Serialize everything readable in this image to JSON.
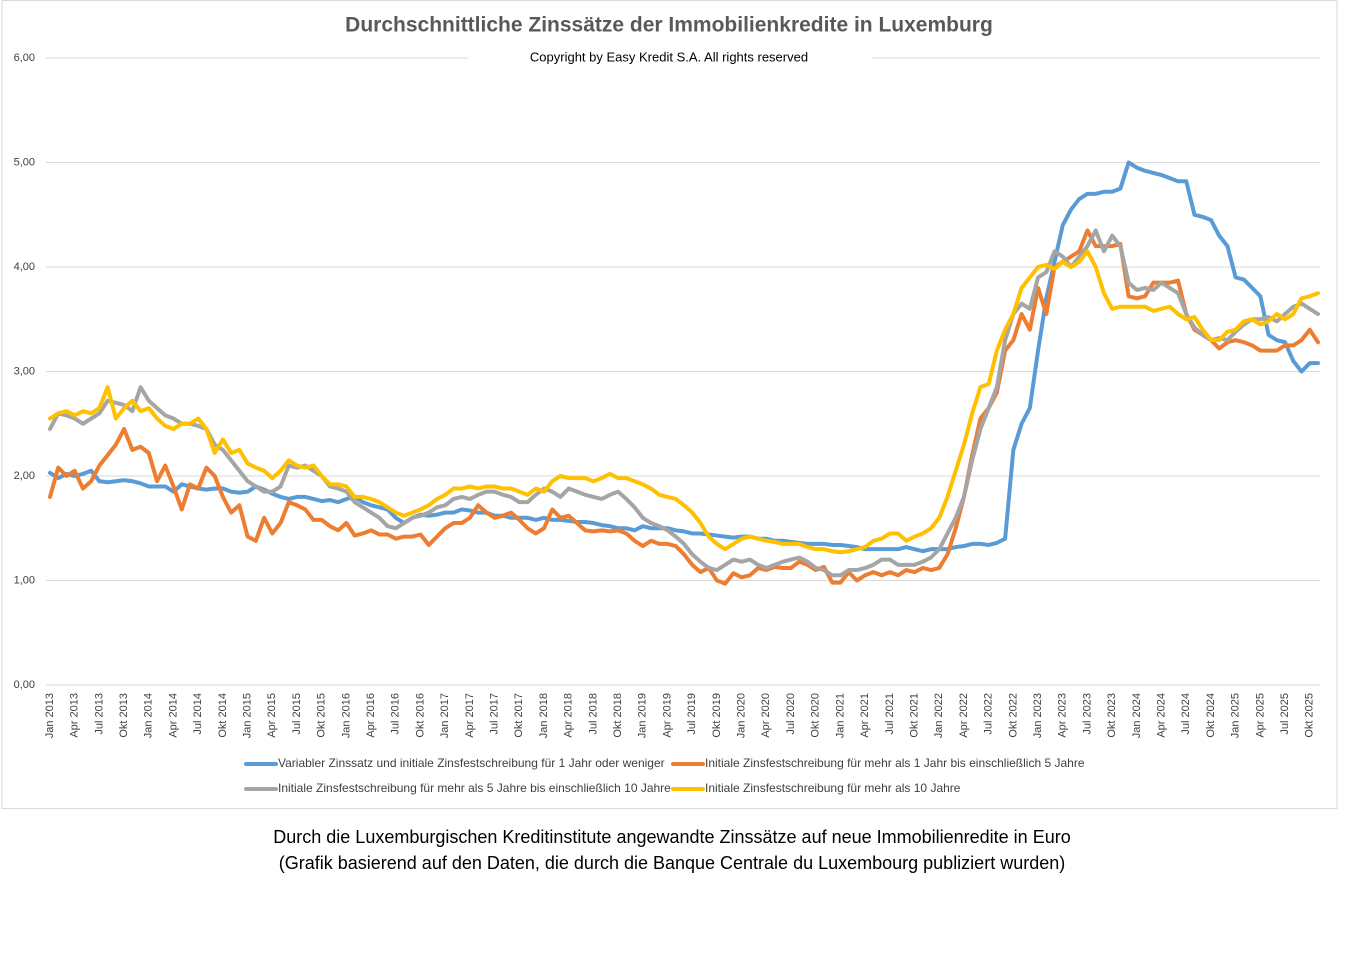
{
  "chart_data": {
    "type": "line",
    "title": "Durchschnittliche Zinssätze der Immobilienkredite in Luxemburg",
    "subtitle": "Copyright by Easy Kredit S.A. All rights reserved",
    "captions": [
      "Durch die Luxemburgischen Kreditinstitute angewandte Zinssätze auf neue Immobilienredite in Euro",
      "(Grafik basierend auf den Daten, die durch die Banque Centrale du Luxembourg publiziert wurden)"
    ],
    "ylim": [
      0,
      6
    ],
    "yticks": [
      {
        "value": 0,
        "label": "0,00"
      },
      {
        "value": 1,
        "label": "1,00"
      },
      {
        "value": 2,
        "label": "2,00"
      },
      {
        "value": 3,
        "label": "3,00"
      },
      {
        "value": 4,
        "label": "4,00"
      },
      {
        "value": 5,
        "label": "5,00"
      },
      {
        "value": 6,
        "label": "6,00"
      }
    ],
    "grid": true,
    "legend": "bottom",
    "categories": [
      "Jan 2013",
      null,
      null,
      "Apr 2013",
      null,
      null,
      "Jul 2013",
      null,
      null,
      "Okt 2013",
      null,
      null,
      "Jan 2014",
      null,
      null,
      "Apr 2014",
      null,
      null,
      "Jul 2014",
      null,
      null,
      "Okt 2014",
      null,
      null,
      "Jan 2015",
      null,
      null,
      "Apr 2015",
      null,
      null,
      "Jul 2015",
      null,
      null,
      "Okt 2015",
      null,
      null,
      "Jan 2016",
      null,
      null,
      "Apr 2016",
      null,
      null,
      "Jul 2016",
      null,
      null,
      "Okt 2016",
      null,
      null,
      "Jan 2017",
      null,
      null,
      "Apr 2017",
      null,
      null,
      "Jul 2017",
      null,
      null,
      "Okt 2017",
      null,
      null,
      "Jan 2018",
      null,
      null,
      "Apr 2018",
      null,
      null,
      "Jul 2018",
      null,
      null,
      "Okt 2018",
      null,
      null,
      "Jan 2019",
      null,
      null,
      "Apr 2019",
      null,
      null,
      "Jul 2019",
      null,
      null,
      "Okt 2019",
      null,
      null,
      "Jan 2020",
      null,
      null,
      "Apr 2020",
      null,
      null,
      "Jul 2020",
      null,
      null,
      "Okt 2020",
      null,
      null,
      "Jan 2021",
      null,
      null,
      "Apr 2021",
      null,
      null,
      "Jul 2021",
      null,
      null,
      "Okt 2021",
      null,
      null,
      "Jan 2022",
      null,
      null,
      "Apr 2022",
      null,
      null,
      "Jul 2022",
      null,
      null,
      "Okt 2022",
      null,
      null,
      "Jan 2023",
      null,
      null,
      "Apr 2023",
      null,
      null,
      "Jul 2023",
      null,
      null,
      "Okt 2023",
      null,
      null,
      "Jan 2024",
      null,
      null,
      "Apr 2024",
      null,
      null,
      "Jul 2024",
      null,
      null,
      "Okt 2024",
      null,
      null,
      "Jan 2025",
      null,
      null,
      "Apr 2025",
      null,
      null,
      "Jul 2025",
      null,
      null,
      "Okt 2025",
      null
    ],
    "series": [
      {
        "name": "Variabler Zinssatz und initiale Zinsfestschreibung für 1 Jahr oder weniger",
        "color": "#5b9bd5",
        "values": [
          2.03,
          1.98,
          2.02,
          2.0,
          2.02,
          2.05,
          1.95,
          1.94,
          1.95,
          1.96,
          1.95,
          1.93,
          1.9,
          1.9,
          1.9,
          1.85,
          1.92,
          1.9,
          1.88,
          1.87,
          1.88,
          1.88,
          1.85,
          1.84,
          1.85,
          1.9,
          1.87,
          1.83,
          1.8,
          1.78,
          1.8,
          1.8,
          1.78,
          1.76,
          1.77,
          1.75,
          1.78,
          1.8,
          1.75,
          1.72,
          1.7,
          1.68,
          1.6,
          1.55,
          1.6,
          1.63,
          1.62,
          1.63,
          1.65,
          1.65,
          1.68,
          1.67,
          1.65,
          1.65,
          1.62,
          1.62,
          1.6,
          1.6,
          1.6,
          1.58,
          1.6,
          1.58,
          1.58,
          1.57,
          1.56,
          1.56,
          1.55,
          1.53,
          1.52,
          1.5,
          1.5,
          1.48,
          1.52,
          1.5,
          1.5,
          1.5,
          1.48,
          1.47,
          1.45,
          1.45,
          1.44,
          1.43,
          1.42,
          1.41,
          1.42,
          1.42,
          1.4,
          1.4,
          1.38,
          1.38,
          1.37,
          1.36,
          1.35,
          1.35,
          1.35,
          1.34,
          1.34,
          1.33,
          1.32,
          1.3,
          1.3,
          1.3,
          1.3,
          1.3,
          1.32,
          1.3,
          1.28,
          1.3,
          1.3,
          1.3,
          1.32,
          1.33,
          1.35,
          1.35,
          1.34,
          1.36,
          1.4,
          2.25,
          2.5,
          2.65,
          3.2,
          3.7,
          4.05,
          4.4,
          4.55,
          4.65,
          4.7,
          4.7,
          4.72,
          4.72,
          4.75,
          5.0,
          4.95,
          4.92,
          4.9,
          4.88,
          4.85,
          4.82,
          4.82,
          4.5,
          4.48,
          4.45,
          4.3,
          4.2,
          3.9,
          3.88,
          3.8,
          3.72,
          3.35,
          3.3,
          3.28,
          3.1,
          3.0,
          3.08,
          3.08
        ]
      },
      {
        "name": "Initiale Zinsfestschreibung für mehr als 1 Jahr bis einschließlich 5 Jahre",
        "color": "#ed7d31",
        "values": [
          1.8,
          2.08,
          2.0,
          2.05,
          1.88,
          1.95,
          2.1,
          2.2,
          2.3,
          2.45,
          2.25,
          2.28,
          2.22,
          1.95,
          2.1,
          1.9,
          1.68,
          1.92,
          1.88,
          2.08,
          2.0,
          1.8,
          1.65,
          1.72,
          1.42,
          1.38,
          1.6,
          1.45,
          1.55,
          1.75,
          1.72,
          1.68,
          1.58,
          1.58,
          1.52,
          1.48,
          1.55,
          1.43,
          1.45,
          1.48,
          1.44,
          1.44,
          1.4,
          1.42,
          1.42,
          1.44,
          1.34,
          1.42,
          1.5,
          1.55,
          1.55,
          1.6,
          1.72,
          1.65,
          1.6,
          1.62,
          1.65,
          1.58,
          1.5,
          1.45,
          1.5,
          1.68,
          1.6,
          1.62,
          1.55,
          1.48,
          1.47,
          1.48,
          1.47,
          1.48,
          1.45,
          1.38,
          1.33,
          1.38,
          1.35,
          1.35,
          1.33,
          1.25,
          1.15,
          1.08,
          1.12,
          1.0,
          0.97,
          1.07,
          1.03,
          1.05,
          1.12,
          1.1,
          1.13,
          1.12,
          1.12,
          1.18,
          1.15,
          1.1,
          1.13,
          0.98,
          0.98,
          1.08,
          1.0,
          1.05,
          1.08,
          1.05,
          1.08,
          1.05,
          1.1,
          1.08,
          1.12,
          1.1,
          1.12,
          1.25,
          1.5,
          1.8,
          2.2,
          2.55,
          2.65,
          2.8,
          3.2,
          3.3,
          3.55,
          3.4,
          3.8,
          3.55,
          4.0,
          4.05,
          4.1,
          4.15,
          4.35,
          4.2,
          4.2,
          4.2,
          4.22,
          3.72,
          3.7,
          3.72,
          3.85,
          3.85,
          3.85,
          3.87,
          3.55,
          3.4,
          3.35,
          3.3,
          3.22,
          3.28,
          3.3,
          3.28,
          3.25,
          3.2,
          3.2,
          3.2,
          3.25,
          3.25,
          3.3,
          3.4,
          3.28
        ]
      },
      {
        "name": "Initiale Zinsfestschreibung für mehr als 5 Jahre bis einschließlich 10 Jahre",
        "color": "#a5a5a5",
        "values": [
          2.45,
          2.6,
          2.58,
          2.55,
          2.5,
          2.55,
          2.6,
          2.72,
          2.7,
          2.68,
          2.62,
          2.85,
          2.72,
          2.65,
          2.58,
          2.55,
          2.5,
          2.5,
          2.48,
          2.45,
          2.3,
          2.25,
          2.15,
          2.05,
          1.95,
          1.9,
          1.85,
          1.85,
          1.9,
          2.1,
          2.08,
          2.1,
          2.05,
          2.0,
          1.9,
          1.88,
          1.85,
          1.75,
          1.7,
          1.65,
          1.6,
          1.52,
          1.5,
          1.55,
          1.6,
          1.62,
          1.65,
          1.7,
          1.72,
          1.78,
          1.8,
          1.78,
          1.82,
          1.85,
          1.85,
          1.82,
          1.8,
          1.75,
          1.75,
          1.82,
          1.88,
          1.85,
          1.8,
          1.88,
          1.85,
          1.82,
          1.8,
          1.78,
          1.82,
          1.85,
          1.78,
          1.7,
          1.6,
          1.55,
          1.52,
          1.48,
          1.42,
          1.35,
          1.25,
          1.18,
          1.12,
          1.1,
          1.15,
          1.2,
          1.18,
          1.2,
          1.15,
          1.12,
          1.15,
          1.18,
          1.2,
          1.22,
          1.18,
          1.12,
          1.1,
          1.05,
          1.05,
          1.1,
          1.1,
          1.12,
          1.15,
          1.2,
          1.2,
          1.15,
          1.15,
          1.15,
          1.18,
          1.22,
          1.3,
          1.45,
          1.6,
          1.8,
          2.15,
          2.45,
          2.65,
          2.85,
          3.3,
          3.55,
          3.65,
          3.6,
          3.9,
          3.95,
          4.15,
          4.1,
          4.0,
          4.1,
          4.2,
          4.35,
          4.15,
          4.3,
          4.2,
          3.85,
          3.78,
          3.8,
          3.78,
          3.85,
          3.8,
          3.75,
          3.55,
          3.42,
          3.35,
          3.3,
          3.32,
          3.3,
          3.38,
          3.45,
          3.5,
          3.5,
          3.52,
          3.48,
          3.55,
          3.62,
          3.65,
          3.6,
          3.55
        ]
      },
      {
        "name": "Initiale Zinsfestschreibung für mehr als 10 Jahre",
        "color": "#ffc000",
        "values": [
          2.55,
          2.6,
          2.62,
          2.58,
          2.62,
          2.6,
          2.65,
          2.85,
          2.55,
          2.65,
          2.72,
          2.62,
          2.65,
          2.55,
          2.48,
          2.45,
          2.5,
          2.5,
          2.55,
          2.45,
          2.22,
          2.35,
          2.22,
          2.25,
          2.12,
          2.08,
          2.05,
          1.98,
          2.05,
          2.15,
          2.1,
          2.08,
          2.1,
          2.0,
          1.92,
          1.92,
          1.9,
          1.8,
          1.8,
          1.78,
          1.75,
          1.7,
          1.65,
          1.62,
          1.65,
          1.68,
          1.72,
          1.78,
          1.82,
          1.88,
          1.88,
          1.9,
          1.88,
          1.9,
          1.9,
          1.88,
          1.88,
          1.85,
          1.82,
          1.88,
          1.85,
          1.95,
          2.0,
          1.98,
          1.98,
          1.98,
          1.95,
          1.98,
          2.02,
          1.98,
          1.98,
          1.95,
          1.92,
          1.88,
          1.82,
          1.8,
          1.78,
          1.72,
          1.65,
          1.55,
          1.42,
          1.35,
          1.3,
          1.35,
          1.4,
          1.42,
          1.4,
          1.38,
          1.37,
          1.35,
          1.35,
          1.35,
          1.32,
          1.3,
          1.3,
          1.28,
          1.27,
          1.28,
          1.3,
          1.32,
          1.38,
          1.4,
          1.45,
          1.45,
          1.38,
          1.42,
          1.45,
          1.5,
          1.6,
          1.8,
          2.05,
          2.3,
          2.6,
          2.85,
          2.88,
          3.2,
          3.4,
          3.55,
          3.8,
          3.9,
          4.0,
          4.02,
          3.98,
          4.05,
          4.0,
          4.05,
          4.15,
          4.0,
          3.75,
          3.6,
          3.62,
          3.62,
          3.62,
          3.62,
          3.58,
          3.6,
          3.62,
          3.55,
          3.5,
          3.52,
          3.4,
          3.3,
          3.3,
          3.38,
          3.4,
          3.48,
          3.5,
          3.45,
          3.48,
          3.55,
          3.5,
          3.55,
          3.7,
          3.72,
          3.75
        ]
      }
    ]
  }
}
